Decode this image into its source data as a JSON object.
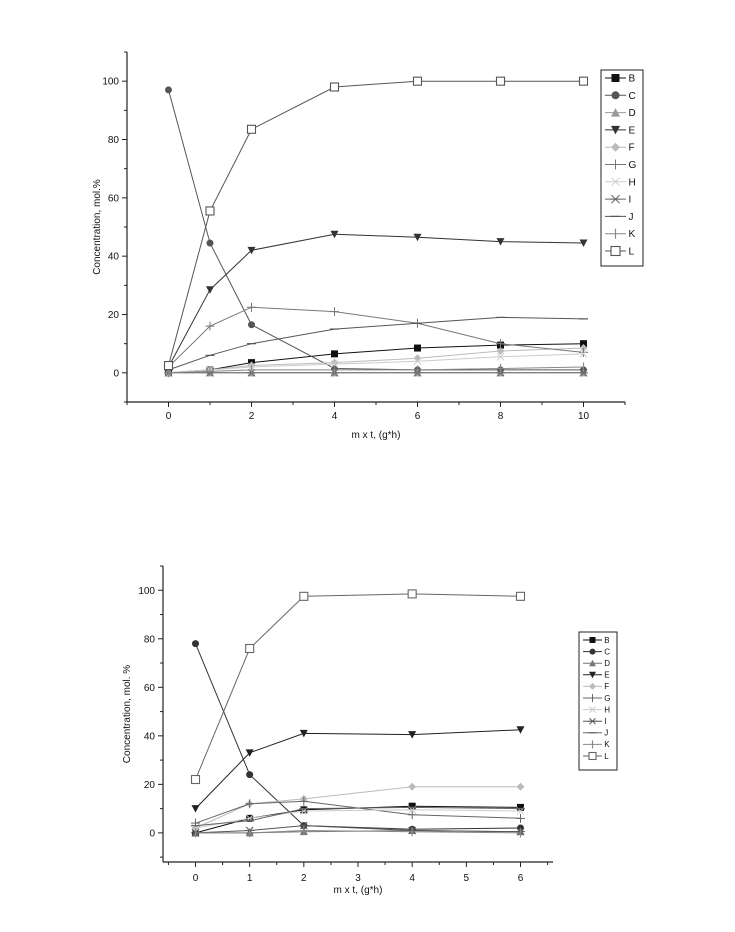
{
  "chart_data": [
    {
      "type": "line",
      "title": "",
      "xlabel": "m x t, (g*h)",
      "ylabel": "Concentration, mol.%",
      "xlim": [
        -1,
        11
      ],
      "ylim": [
        -10,
        110
      ],
      "xticks": [
        0,
        2,
        4,
        6,
        8,
        10
      ],
      "yticks": [
        0,
        20,
        40,
        60,
        80,
        100
      ],
      "x": [
        0,
        1,
        2,
        4,
        6,
        8,
        10
      ],
      "legend_position": "right",
      "series": [
        {
          "name": "B",
          "marker": "square-filled",
          "color": "#111111",
          "values": [
            0,
            1,
            3.5,
            6.5,
            8.5,
            9.5,
            10
          ]
        },
        {
          "name": "C",
          "marker": "circle-filled",
          "color": "#555555",
          "values": [
            97,
            44.5,
            16.5,
            1.5,
            1,
            1,
            1
          ]
        },
        {
          "name": "D",
          "marker": "triangle-up-filled",
          "color": "#999999",
          "values": [
            0,
            0,
            0,
            0,
            0,
            0,
            0
          ]
        },
        {
          "name": "E",
          "marker": "triangle-down-filled",
          "color": "#333333",
          "values": [
            2,
            28.5,
            42,
            47.5,
            46.5,
            45,
            44.5
          ]
        },
        {
          "name": "F",
          "marker": "diamond-filled",
          "color": "#bbbbbb",
          "values": [
            0,
            1,
            2.5,
            3.5,
            5,
            7.5,
            8.5
          ]
        },
        {
          "name": "G",
          "marker": "plus",
          "color": "#777777",
          "values": [
            2,
            16,
            22.5,
            21,
            17,
            10,
            7
          ]
        },
        {
          "name": "H",
          "marker": "x",
          "color": "#cccccc",
          "values": [
            0,
            1,
            2,
            3,
            4,
            5.5,
            6.5
          ]
        },
        {
          "name": "I",
          "marker": "asterisk",
          "color": "#666666",
          "values": [
            0,
            0,
            0,
            0,
            0,
            0,
            0
          ]
        },
        {
          "name": "J",
          "marker": "hline",
          "color": "#555555",
          "values": [
            1,
            6,
            10,
            15,
            17,
            19,
            18.5
          ]
        },
        {
          "name": "K",
          "marker": "vline",
          "color": "#888888",
          "values": [
            0,
            0.5,
            1,
            1,
            1,
            1.5,
            2
          ]
        },
        {
          "name": "L",
          "marker": "square-open",
          "color": "#555555",
          "values": [
            2.5,
            55.5,
            83.5,
            98,
            100,
            100,
            100
          ]
        }
      ]
    },
    {
      "type": "line",
      "title": "",
      "xlabel": "m x t, (g*h)",
      "ylabel": "Concentration, mol. %",
      "xlim": [
        -0.6,
        6.6
      ],
      "ylim": [
        -12,
        110
      ],
      "xticks": [
        0,
        1,
        2,
        3,
        4,
        5,
        6
      ],
      "yticks": [
        0,
        20,
        40,
        60,
        80,
        100
      ],
      "x": [
        0,
        1,
        2,
        4,
        6
      ],
      "legend_position": "right",
      "series": [
        {
          "name": "B",
          "marker": "square-filled",
          "color": "#111111",
          "values": [
            0,
            6,
            9.5,
            11,
            10.5
          ]
        },
        {
          "name": "C",
          "marker": "circle-filled",
          "color": "#333333",
          "values": [
            78,
            24,
            3,
            1.5,
            2
          ]
        },
        {
          "name": "D",
          "marker": "triangle-up-filled",
          "color": "#777777",
          "values": [
            0,
            0,
            0.5,
            1,
            0.5
          ]
        },
        {
          "name": "E",
          "marker": "triangle-down-filled",
          "color": "#222222",
          "values": [
            10,
            33,
            41,
            40.5,
            42.5
          ]
        },
        {
          "name": "F",
          "marker": "diamond-filled",
          "color": "#bbbbbb",
          "values": [
            2,
            12,
            14,
            19,
            19
          ]
        },
        {
          "name": "G",
          "marker": "plus",
          "color": "#666666",
          "values": [
            4,
            12,
            13,
            7.5,
            6
          ]
        },
        {
          "name": "H",
          "marker": "x",
          "color": "#cccccc",
          "values": [
            2,
            6,
            9,
            9.5,
            9
          ]
        },
        {
          "name": "I",
          "marker": "asterisk",
          "color": "#555555",
          "values": [
            0,
            1,
            3,
            1,
            0.5
          ]
        },
        {
          "name": "J",
          "marker": "hline",
          "color": "#666666",
          "values": [
            3,
            5,
            10,
            10.5,
            10
          ]
        },
        {
          "name": "K",
          "marker": "vline",
          "color": "#888888",
          "values": [
            0,
            0,
            1,
            0.5,
            0
          ]
        },
        {
          "name": "L",
          "marker": "square-open",
          "color": "#666666",
          "values": [
            22,
            76,
            97.5,
            98.5,
            97.5
          ]
        }
      ]
    }
  ]
}
